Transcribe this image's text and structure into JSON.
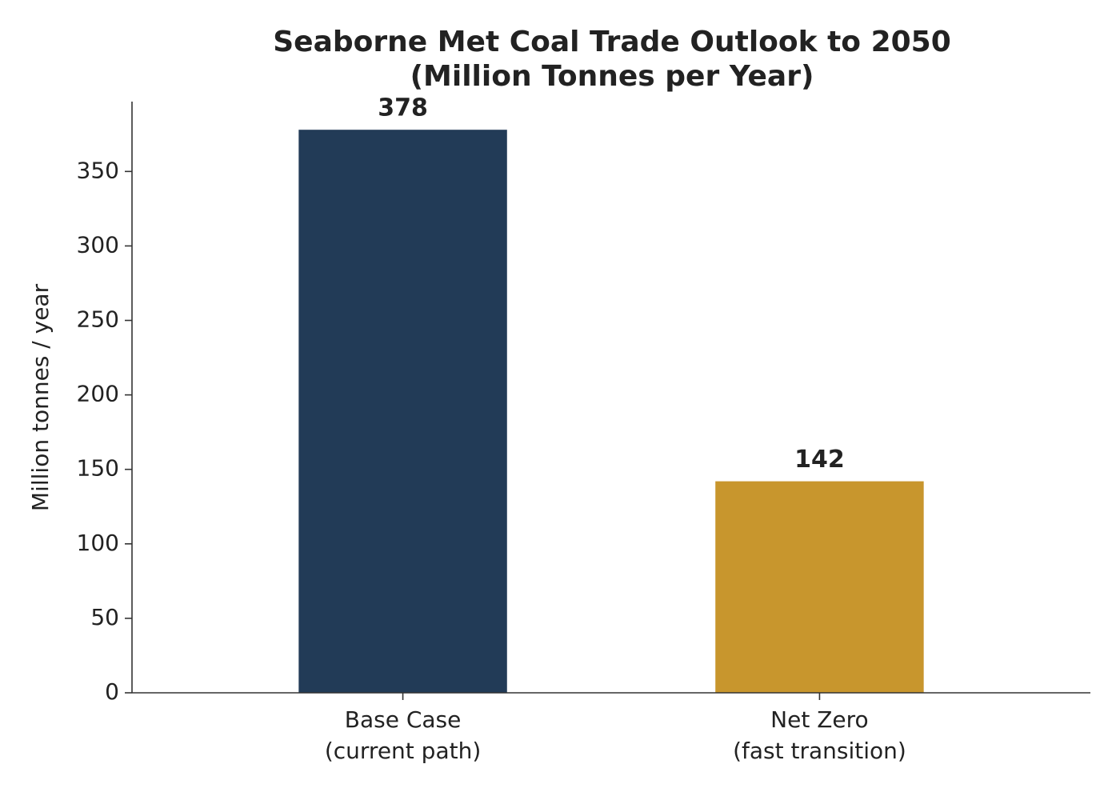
{
  "chart_data": {
    "type": "bar",
    "title": [
      "Seaborne Met Coal Trade Outlook to 2050",
      "(Million Tonnes per Year)"
    ],
    "ylabel": "Million tonnes / year",
    "categories": [
      [
        "Base Case",
        "(current path)"
      ],
      [
        "Net Zero",
        "(fast transition)"
      ]
    ],
    "values": [
      378,
      142
    ],
    "colors": [
      "#223b57",
      "#c8962d"
    ],
    "ylim": [
      0,
      396.9
    ],
    "yticks": [
      0,
      50,
      100,
      150,
      200,
      250,
      300,
      350
    ],
    "grid": false
  }
}
